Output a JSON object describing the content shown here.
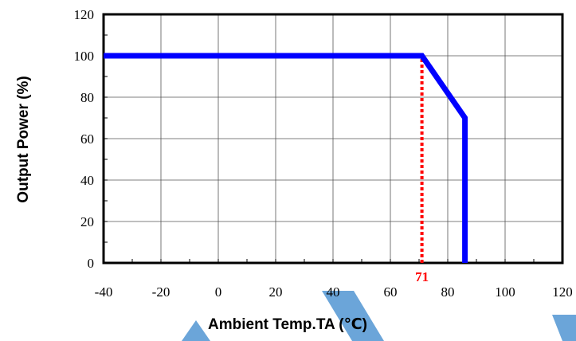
{
  "chart_data": {
    "type": "line",
    "xlabel": "Ambient Temp.TA (℃)",
    "ylabel": "Output Power (%)",
    "xlim": [
      -40,
      120
    ],
    "ylim": [
      0,
      120
    ],
    "xticks": [
      -40,
      -20,
      0,
      20,
      40,
      60,
      80,
      100,
      120
    ],
    "yticks": [
      0,
      20,
      40,
      60,
      80,
      100,
      120
    ],
    "xtick_labels": [
      "-40",
      "-20",
      "0",
      "20",
      "40",
      "60",
      "80",
      "100",
      "120"
    ],
    "ytick_labels": [
      "0",
      "20",
      "40",
      "60",
      "80",
      "100",
      "120"
    ],
    "grid": true,
    "series": [
      {
        "color": "#0000ff",
        "points": [
          {
            "x": -40,
            "y": 100
          },
          {
            "x": 71,
            "y": 100
          },
          {
            "x": 86,
            "y": 70
          },
          {
            "x": 86,
            "y": 0
          }
        ]
      }
    ],
    "annotations": [
      {
        "type": "vertical-dashed-line",
        "x": 71,
        "y_from": 0,
        "y_to": 100,
        "color": "#ff0000",
        "label": "71"
      }
    ]
  },
  "colors": {
    "series": "#0000ff",
    "marker": "#ff0000",
    "axis": "#000000",
    "grid": "#555555",
    "decoration": "#5b9bd5"
  }
}
